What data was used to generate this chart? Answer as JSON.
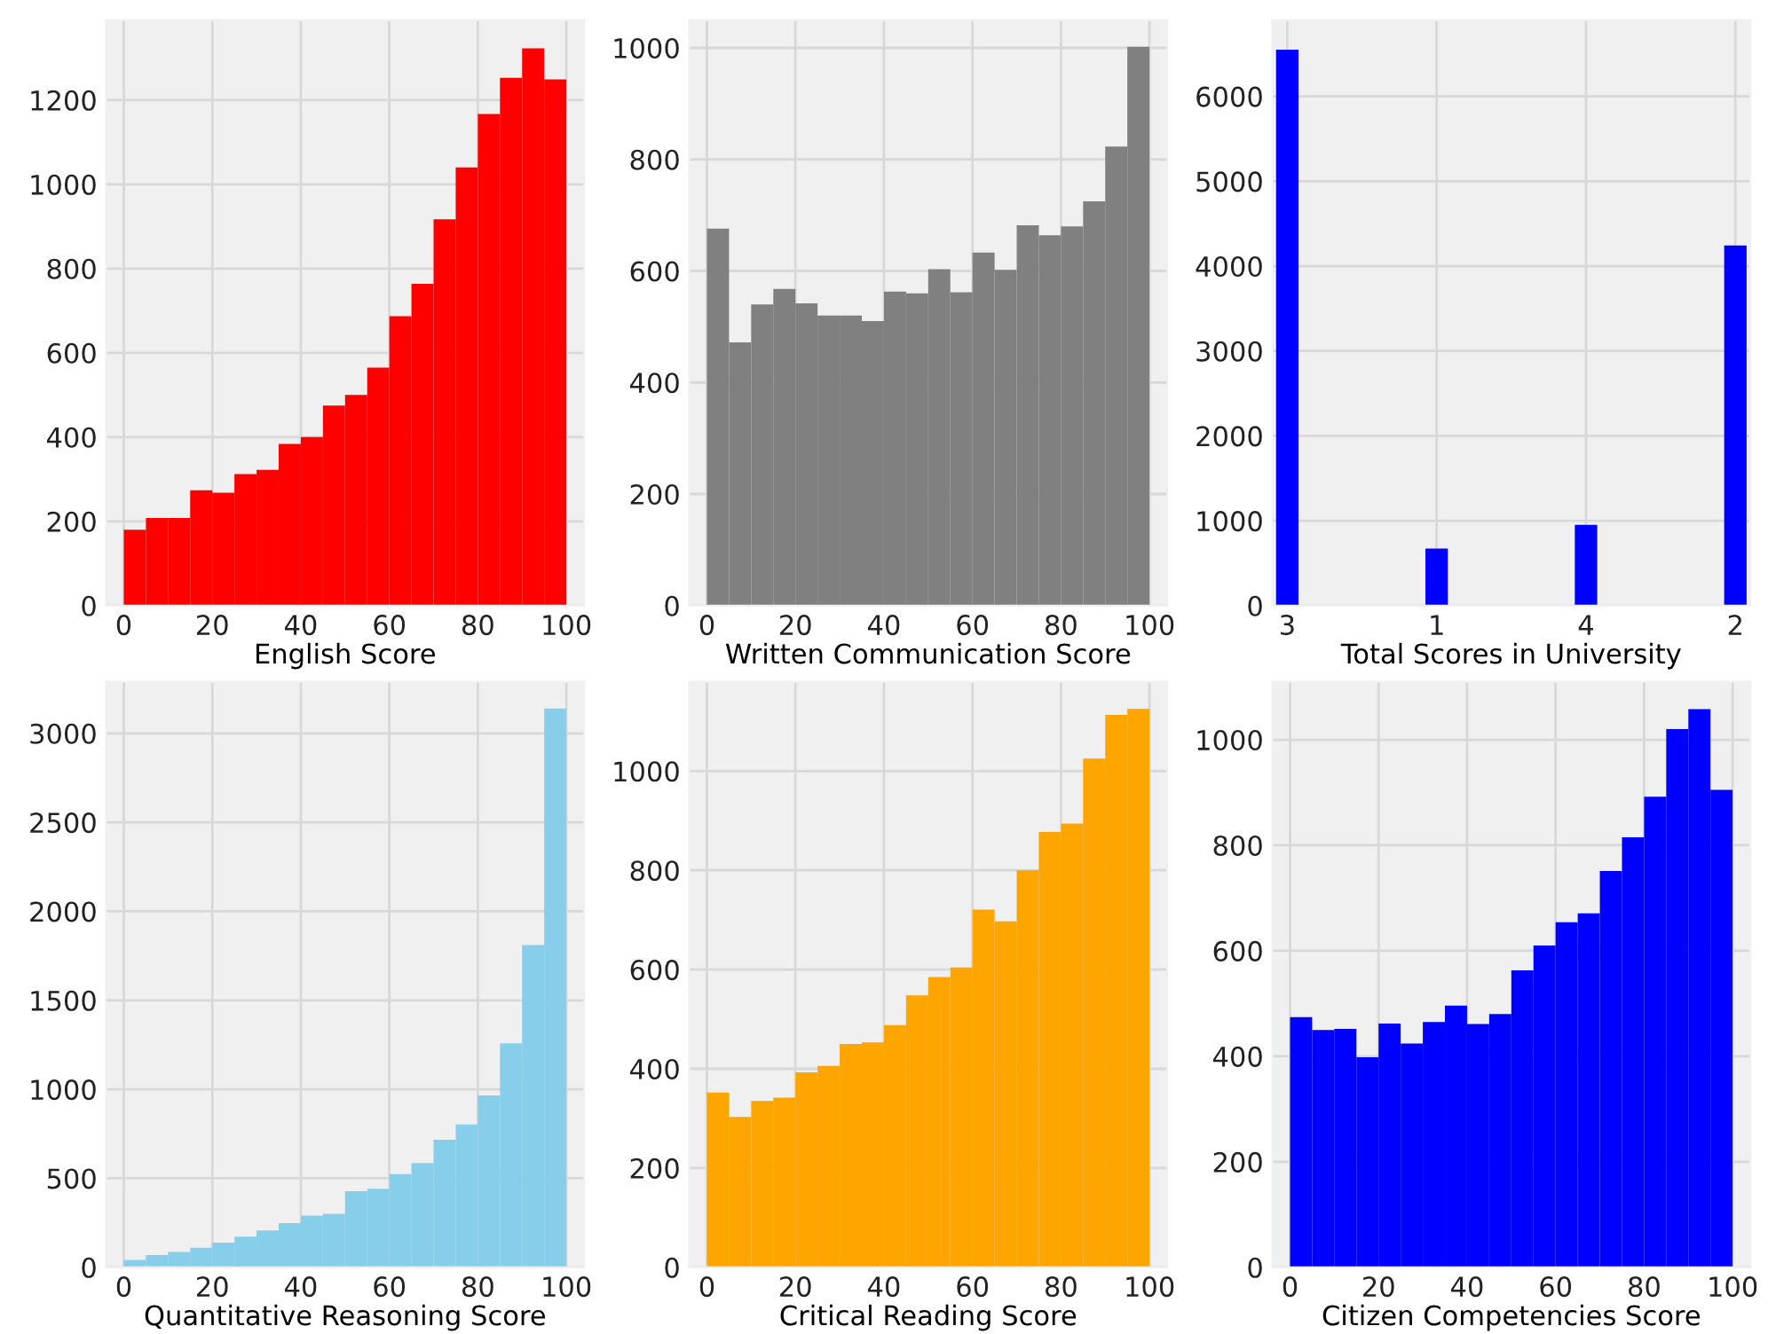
{
  "chart_data": [
    {
      "type": "histogram",
      "xlabel": "English Score",
      "bins": [
        0,
        5,
        10,
        15,
        20,
        25,
        30,
        35,
        40,
        45,
        50,
        55,
        60,
        65,
        70,
        75,
        80,
        85,
        90,
        95,
        100
      ],
      "color": "#ff0000",
      "values": [
        180,
        208,
        208,
        274,
        268,
        312,
        322,
        384,
        400,
        475,
        500,
        565,
        687,
        764,
        917,
        1040,
        1167,
        1253,
        1323,
        1249
      ],
      "xlim": [
        -4,
        104
      ],
      "xticks": [
        0,
        20,
        40,
        60,
        80,
        100
      ],
      "ylim": [
        0,
        1390
      ],
      "yticks": [
        0,
        200,
        400,
        600,
        800,
        1000,
        1200
      ],
      "grid": true
    },
    {
      "type": "histogram",
      "xlabel": "Written Communication Score",
      "bins": [
        0,
        5,
        10,
        15,
        20,
        25,
        30,
        35,
        40,
        45,
        50,
        55,
        60,
        65,
        70,
        75,
        80,
        85,
        90,
        95,
        100
      ],
      "color": "#808080",
      "values": [
        676,
        472,
        540,
        568,
        542,
        520,
        520,
        510,
        563,
        560,
        603,
        562,
        633,
        602,
        682,
        664,
        680,
        725,
        823,
        1002
      ],
      "xlim": [
        -4,
        104
      ],
      "xticks": [
        0,
        20,
        40,
        60,
        80,
        100
      ],
      "ylim": [
        0,
        1050
      ],
      "yticks": [
        0,
        200,
        400,
        600,
        800,
        1000
      ],
      "grid": true
    },
    {
      "type": "bar",
      "xlabel": "Total Scores in University",
      "categories": [
        "3",
        "1",
        "4",
        "2"
      ],
      "color": "#0000ff",
      "values": [
        6550,
        671,
        950,
        4243
      ],
      "ylim": [
        0,
        6900
      ],
      "yticks": [
        0,
        1000,
        2000,
        3000,
        4000,
        5000,
        6000
      ],
      "grid": true
    },
    {
      "type": "histogram",
      "xlabel": "Quantitative Reasoning Score",
      "bins": [
        0,
        5,
        10,
        15,
        20,
        25,
        30,
        35,
        40,
        45,
        50,
        55,
        60,
        65,
        70,
        75,
        80,
        85,
        90,
        95,
        100
      ],
      "color": "#87ceeb",
      "values": [
        41,
        69,
        86,
        110,
        138,
        172,
        207,
        248,
        290,
        300,
        428,
        441,
        524,
        586,
        717,
        803,
        966,
        1259,
        1810,
        3140
      ],
      "xlim": [
        -4,
        104
      ],
      "xticks": [
        0,
        20,
        40,
        60,
        80,
        100
      ],
      "ylim": [
        0,
        3290
      ],
      "yticks": [
        0,
        500,
        1000,
        1500,
        2000,
        2500,
        3000
      ],
      "grid": true
    },
    {
      "type": "histogram",
      "xlabel": "Critical Reading Score",
      "bins": [
        0,
        5,
        10,
        15,
        20,
        25,
        30,
        35,
        40,
        45,
        50,
        55,
        60,
        65,
        70,
        75,
        80,
        85,
        90,
        95,
        100
      ],
      "color": "#ffa500",
      "values": [
        352,
        303,
        335,
        342,
        393,
        406,
        450,
        453,
        488,
        548,
        585,
        604,
        721,
        697,
        800,
        877,
        894,
        1025,
        1113,
        1125
      ],
      "xlim": [
        -4,
        104
      ],
      "xticks": [
        0,
        20,
        40,
        60,
        80,
        100
      ],
      "ylim": [
        0,
        1180
      ],
      "yticks": [
        0,
        200,
        400,
        600,
        800,
        1000
      ],
      "grid": true
    },
    {
      "type": "histogram",
      "xlabel": "Citizen Competencies Score",
      "bins": [
        0,
        5,
        10,
        15,
        20,
        25,
        30,
        35,
        40,
        45,
        50,
        55,
        60,
        65,
        70,
        75,
        80,
        85,
        90,
        95,
        100
      ],
      "color": "#0000ff",
      "values": [
        474,
        450,
        452,
        398,
        462,
        424,
        465,
        496,
        461,
        480,
        563,
        610,
        654,
        671,
        751,
        815,
        892,
        1020,
        1058,
        905
      ],
      "xlim": [
        -4,
        104
      ],
      "xticks": [
        0,
        20,
        40,
        60,
        80,
        100
      ],
      "ylim": [
        0,
        1110
      ],
      "yticks": [
        0,
        200,
        400,
        600,
        800,
        1000
      ],
      "grid": true
    }
  ]
}
